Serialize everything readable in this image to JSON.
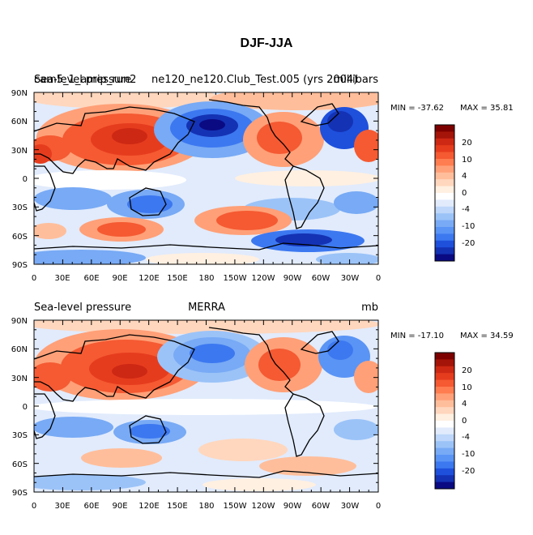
{
  "title": "DJF-JJA",
  "chart_data": [
    {
      "type": "heatmap",
      "id": "test",
      "left_label": "Sea-level pressure",
      "overlap_label": "cam5_1_amip_run2",
      "center_label": "ne120_ne120.Club_Test.005 (yrs 2004)",
      "units": "millibars",
      "min_label": "MIN = -37.62",
      "max_label": "MAX =  35.81",
      "min": -37.62,
      "max": 35.81
    },
    {
      "type": "heatmap",
      "id": "obs",
      "left_label": "Sea-level pressure",
      "center_label": "MERRA",
      "units": "mb",
      "min_label": "MIN = -17.10",
      "max_label": "MAX =  34.59",
      "min": -17.1,
      "max": 34.59
    }
  ],
  "axes": {
    "xticks": [
      "0",
      "30E",
      "60E",
      "90E",
      "120E",
      "150E",
      "180",
      "150W",
      "120W",
      "90W",
      "60W",
      "30W",
      "0"
    ],
    "yticks": [
      "90N",
      "60N",
      "30N",
      "0",
      "30S",
      "60S",
      "90S"
    ]
  },
  "colorbar": {
    "levels": [
      -25,
      -20,
      -15,
      -10,
      -8,
      -6,
      -4,
      -2,
      -1,
      0,
      1,
      2,
      4,
      6,
      8,
      10,
      15,
      20,
      25
    ],
    "labels": [
      "20",
      "10",
      "4",
      "0",
      "-4",
      "-10",
      "-20"
    ],
    "colors": [
      "#0a0a82",
      "#1432b4",
      "#1e50dc",
      "#3c78f0",
      "#5a94f5",
      "#78aaf5",
      "#9bc3f8",
      "#bed7fa",
      "#e1ebfc",
      "#ffffff",
      "#fff0e1",
      "#ffd7be",
      "#ffbe9b",
      "#ffa078",
      "#ff7d50",
      "#f55a32",
      "#e63c1e",
      "#cd2814",
      "#a51408",
      "#7d0000"
    ]
  }
}
